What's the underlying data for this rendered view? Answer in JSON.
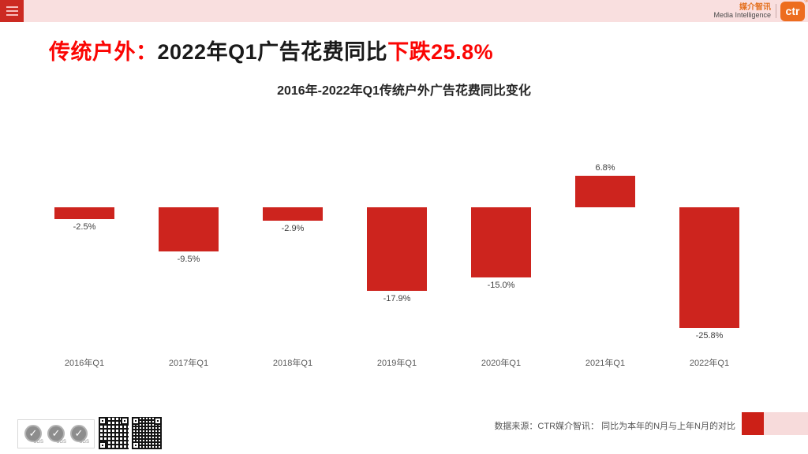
{
  "topbar": {
    "menu_icon": "hamburger-menu",
    "brand": {
      "cn": "媒介智讯",
      "en": "Media Intelligence",
      "logo_text": "ctr",
      "registered_mark": "®"
    }
  },
  "title": {
    "prefix_red": "传统户外：",
    "middle_black": "2022年Q1广告花费同比",
    "highlight_red": "下跌25.8%"
  },
  "chart_data": {
    "type": "bar",
    "title": "2016年-2022年Q1传统户外广告花费同比变化",
    "categories": [
      "2016年Q1",
      "2017年Q1",
      "2018年Q1",
      "2019年Q1",
      "2020年Q1",
      "2021年Q1",
      "2022年Q1"
    ],
    "values": [
      -2.5,
      -9.5,
      -2.9,
      -17.9,
      -15.0,
      6.8,
      -25.8
    ],
    "labels": [
      "-2.5%",
      "-9.5%",
      "-2.9%",
      "-17.9%",
      "-15.0%",
      "6.8%",
      "-25.8%"
    ],
    "unit": "%",
    "bar_color": "#cd241e",
    "ylim": [
      -30,
      10
    ],
    "baseline": 0,
    "gridlines": false,
    "legend": "none",
    "value_labels_position": "outside-end"
  },
  "footer": {
    "source_text": "数据来源：CTR媒介智讯： 同比为本年的N月与上年N月的对比",
    "sgs_label": "SGS",
    "sgs_check": "✓",
    "qr_codes": 2
  },
  "colors": {
    "topbar_bg": "#f9dfdf",
    "menu_red": "#cc2a22",
    "title_red": "#fb0503",
    "title_black": "#1a1a1a",
    "bar_red": "#cd241e",
    "brand_orange": "#ed6d1f",
    "footer_accent_red": "#cc2017",
    "footer_accent_pink": "#f7dbdb"
  }
}
